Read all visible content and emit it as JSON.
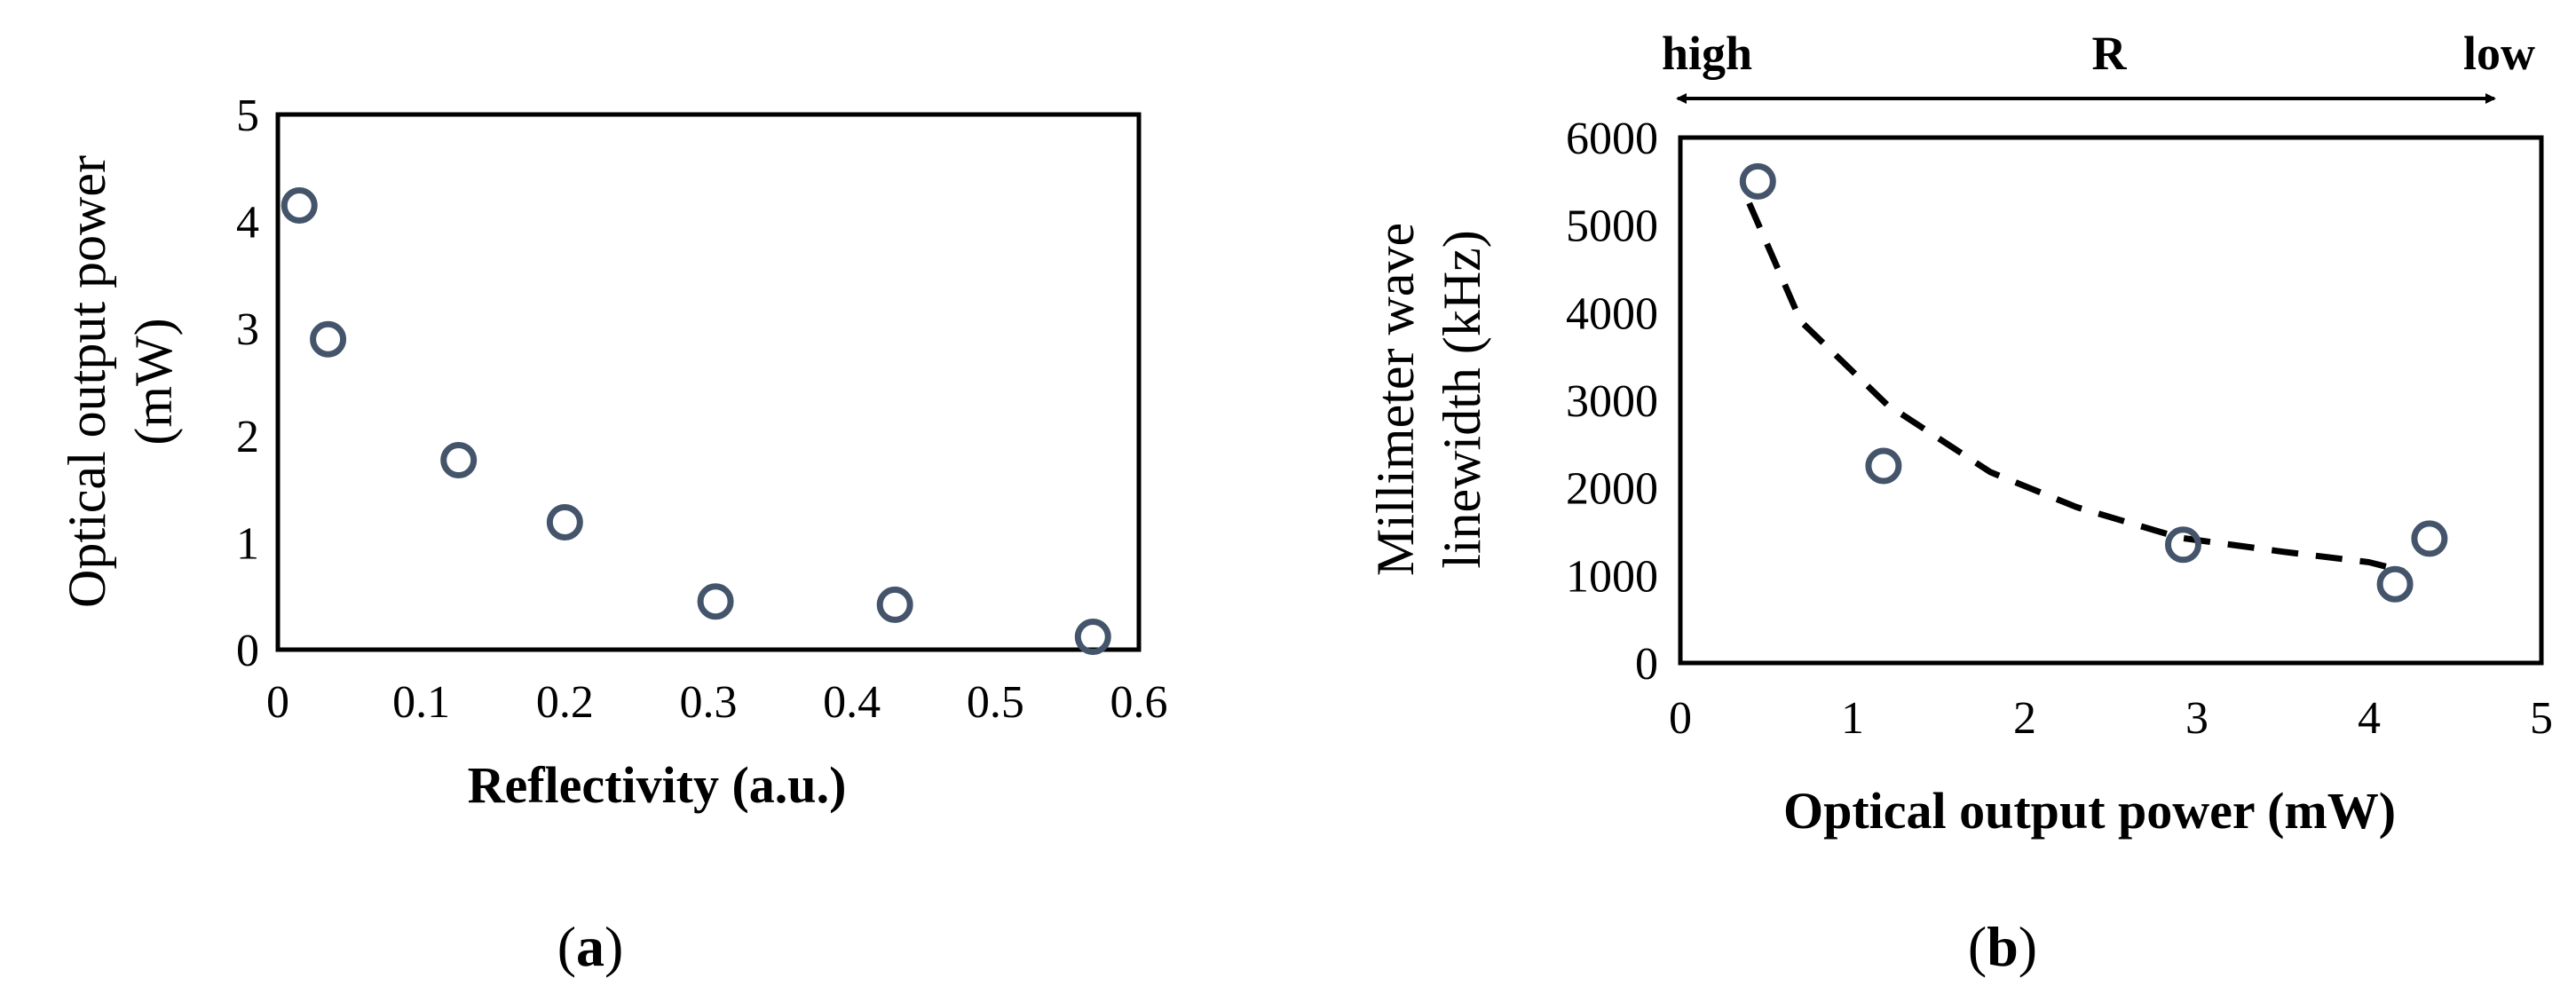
{
  "panels": {
    "a": {
      "caption": "(a)",
      "caption_letter": "a"
    },
    "b": {
      "caption": "(b)",
      "caption_letter": "b"
    }
  },
  "chart_data": [
    {
      "type": "scatter",
      "panel": "a",
      "title": "",
      "xlabel": "Reflectivity (a.u.)",
      "ylabel_lines": [
        "Optical output power",
        "(mW)"
      ],
      "xlim": [
        0,
        0.6
      ],
      "ylim": [
        0,
        5
      ],
      "xticks": [
        0,
        0.1,
        0.2,
        0.3,
        0.4,
        0.5,
        0.6
      ],
      "xtick_labels": [
        "0",
        "0.1",
        "0.2",
        "0.3",
        "0.4",
        "0.5",
        "0.6"
      ],
      "yticks": [
        0,
        1,
        2,
        3,
        4,
        5
      ],
      "ytick_labels": [
        "0",
        "1",
        "2",
        "3",
        "4",
        "5"
      ],
      "grid": false,
      "marker_color": "#44546a",
      "series": [
        {
          "x": [
            0.015,
            0.035,
            0.126,
            0.2,
            0.305,
            0.43,
            0.568
          ],
          "y": [
            4.15,
            2.9,
            1.77,
            1.19,
            0.45,
            0.42,
            0.12
          ]
        }
      ]
    },
    {
      "type": "scatter",
      "panel": "b",
      "title": "",
      "xlabel": "Optical output power (mW)",
      "ylabel_lines": [
        "Millimeter wave",
        "linewidth (kHz)"
      ],
      "xlim": [
        0,
        5
      ],
      "ylim": [
        0,
        6000
      ],
      "xticks": [
        0,
        1,
        2,
        3,
        4,
        5
      ],
      "xtick_labels": [
        "0",
        "1",
        "2",
        "3",
        "4",
        "5"
      ],
      "yticks": [
        0,
        1000,
        2000,
        3000,
        4000,
        5000,
        6000
      ],
      "ytick_labels": [
        "0",
        "1000",
        "2000",
        "3000",
        "4000",
        "5000",
        "6000"
      ],
      "grid": false,
      "marker_color": "#44546a",
      "series": [
        {
          "x": [
            0.45,
            1.18,
            2.92,
            4.15,
            4.35
          ],
          "y": [
            5500,
            2250,
            1350,
            900,
            1420
          ]
        }
      ],
      "trend": {
        "style": "dashed",
        "x": [
          0.4,
          0.7,
          1.2,
          1.8,
          2.3,
          2.9,
          3.5,
          4.0,
          4.2
        ],
        "y": [
          5250,
          3900,
          2950,
          2180,
          1780,
          1430,
          1270,
          1150,
          1050
        ]
      },
      "top_annotation": {
        "left": "high",
        "center": "R",
        "right": "low"
      }
    }
  ]
}
